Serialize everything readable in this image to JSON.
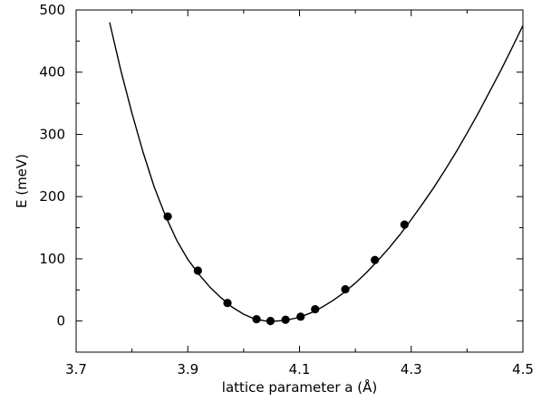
{
  "chart_data": {
    "type": "scatter",
    "xlabel": "lattice parameter a (Å)",
    "ylabel": "E (meV)",
    "xlim": [
      3.7,
      4.5
    ],
    "ylim": [
      -50,
      500
    ],
    "x_ticks": [
      3.7,
      3.9,
      4.1,
      4.3,
      4.5
    ],
    "x_tick_labels": [
      "3.7",
      "3.9",
      "4.1",
      "4.3",
      "4.5"
    ],
    "x_minor_ticks": [
      3.8,
      4.0,
      4.2,
      4.4
    ],
    "y_ticks": [
      0,
      100,
      200,
      300,
      400,
      500
    ],
    "y_tick_labels": [
      "0",
      "100",
      "200",
      "300",
      "400",
      "500"
    ],
    "y_minor_ticks": [
      -50,
      50,
      150,
      250,
      350,
      450
    ],
    "grid": false,
    "legend": "none",
    "series": [
      {
        "kind": "points",
        "x": [
          3.864,
          3.918,
          3.971,
          4.023,
          4.048,
          4.075,
          4.102,
          4.128,
          4.182,
          4.235,
          4.288
        ],
        "y": [
          168,
          81,
          29,
          3,
          0,
          2,
          7,
          19,
          51,
          98,
          155
        ],
        "color": "#000000"
      },
      {
        "kind": "fit-curve",
        "x": [
          3.76,
          3.78,
          3.8,
          3.82,
          3.84,
          3.86,
          3.88,
          3.9,
          3.92,
          3.94,
          3.96,
          3.98,
          4.0,
          4.02,
          4.04,
          4.06,
          4.08,
          4.1,
          4.12,
          4.14,
          4.16,
          4.18,
          4.2,
          4.22,
          4.24,
          4.26,
          4.28,
          4.3,
          4.32,
          4.34,
          4.36,
          4.38,
          4.4,
          4.42,
          4.44,
          4.46,
          4.48,
          4.5
        ],
        "y": [
          480,
          403,
          334,
          271,
          215,
          169,
          130,
          99,
          75,
          54,
          37,
          22,
          11,
          3,
          0,
          0,
          2,
          6,
          13,
          22,
          33,
          46,
          61,
          78,
          97,
          117,
          139,
          163,
          188,
          214,
          242,
          271,
          302,
          334,
          368,
          402,
          438,
          475
        ],
        "color": "#000000"
      }
    ]
  }
}
